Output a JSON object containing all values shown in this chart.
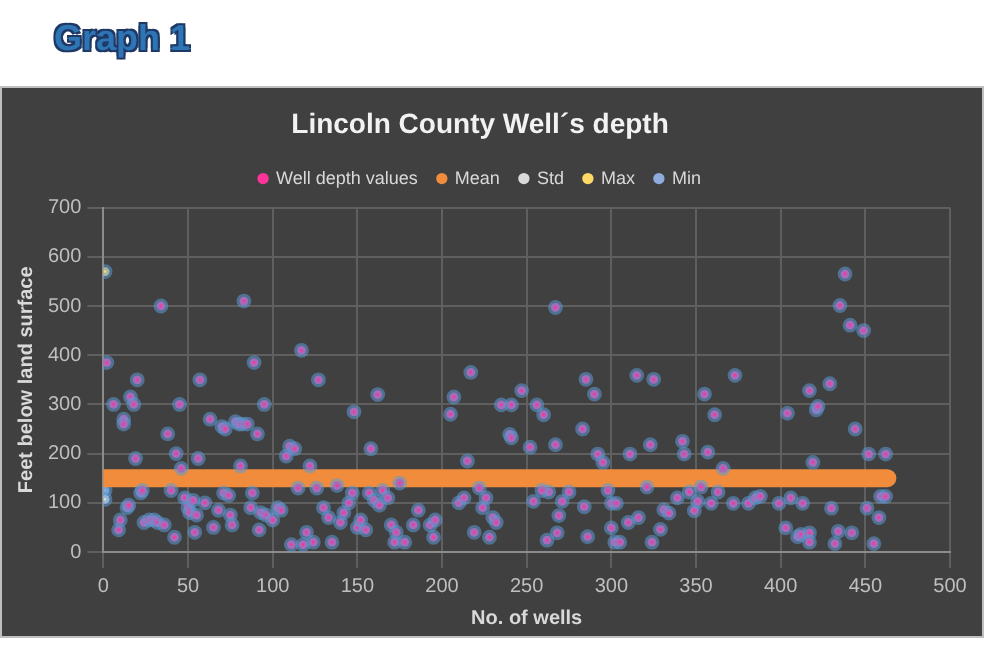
{
  "chart_data": {
    "type": "scatter",
    "title": "Lincoln County Well´s depth",
    "annotations": [
      "Graph 1"
    ],
    "xlabel": "No. of wells",
    "ylabel": "Feet below land surface",
    "xlim": [
      0,
      500
    ],
    "xticks": [
      0,
      50,
      100,
      150,
      200,
      250,
      300,
      350,
      400,
      450,
      500
    ],
    "ylim": [
      0,
      700
    ],
    "yticks": [
      0,
      100,
      200,
      300,
      400,
      500,
      600,
      700
    ],
    "grid": true,
    "legend": "top",
    "marker": "circle",
    "series": [
      {
        "name": "Well depth values",
        "color": "#ff3399",
        "x": [
          2,
          6,
          9,
          10,
          12,
          12,
          14,
          15,
          16,
          18,
          19,
          20,
          22,
          23,
          24,
          27,
          30,
          32,
          34,
          36,
          38,
          40,
          42,
          43,
          45,
          46,
          48,
          50,
          51,
          53,
          54,
          55,
          56,
          57,
          60,
          63,
          65,
          68,
          70,
          71,
          72,
          74,
          75,
          76,
          78,
          80,
          81,
          82,
          83,
          85,
          87,
          88,
          89,
          91,
          92,
          93,
          95,
          96,
          100,
          103,
          105,
          108,
          110,
          111,
          113,
          115,
          117,
          118,
          120,
          122,
          124,
          126,
          127,
          130,
          133,
          135,
          138,
          140,
          142,
          145,
          147,
          148,
          150,
          152,
          155,
          157,
          158,
          160,
          162,
          163,
          165,
          168,
          170,
          172,
          173,
          175,
          178,
          183,
          186,
          193,
          195,
          196,
          205,
          207,
          210,
          213,
          215,
          217,
          219,
          222,
          224,
          226,
          228,
          230,
          232,
          235,
          241,
          240,
          241,
          247,
          252,
          256,
          260,
          267,
          267,
          254,
          263,
          259,
          271,
          269,
          268,
          262,
          275,
          284,
          286,
          283,
          285,
          290,
          292,
          295,
          298,
          300,
          303,
          300,
          302,
          305,
          310,
          316,
          311,
          315,
          323,
          325,
          321,
          324,
          329,
          331,
          334,
          339,
          342,
          343,
          346,
          349,
          351,
          353,
          355,
          357,
          359,
          361,
          363,
          366,
          373,
          372,
          381,
          385,
          388,
          399,
          404,
          406,
          403,
          410,
          412,
          413,
          417,
          417,
          417,
          419,
          421,
          422,
          430,
          429,
          432,
          434,
          435,
          438,
          441,
          442,
          444,
          449,
          451,
          452,
          455,
          458,
          459,
          462,
          462
        ],
        "values": [
          385,
          300,
          45,
          65,
          270,
          260,
          90,
          95,
          315,
          300,
          190,
          350,
          120,
          125,
          60,
          65,
          65,
          60,
          500,
          55,
          240,
          125,
          30,
          200,
          300,
          170,
          110,
          90,
          80,
          105,
          40,
          75,
          190,
          350,
          100,
          270,
          50,
          85,
          255,
          120,
          250,
          115,
          75,
          55,
          265,
          260,
          175,
          260,
          510,
          260,
          90,
          120,
          385,
          240,
          45,
          80,
          300,
          75,
          65,
          90,
          85,
          195,
          215,
          15,
          210,
          130,
          410,
          15,
          40,
          175,
          20,
          130,
          350,
          90,
          70,
          20,
          135,
          60,
          80,
          100,
          120,
          285,
          50,
          65,
          45,
          120,
          210,
          105,
          320,
          95,
          125,
          110,
          55,
          20,
          40,
          140,
          20,
          55,
          85,
          55,
          30,
          65,
          280,
          315,
          100,
          110,
          185,
          365,
          40,
          130,
          90,
          110,
          30,
          70,
          60,
          299,
          299,
          239,
          232,
          328,
          213,
          299,
          279,
          218,
          497,
          103,
          122,
          125,
          103,
          74,
          39,
          24,
          122,
          92,
          31,
          250,
          351,
          321,
          199,
          182,
          125,
          99,
          99,
          49,
          20,
          20,
          60,
          70,
          199,
          359,
          218,
          351,
          132,
          20,
          46,
          86,
          79,
          110,
          225,
          199,
          122,
          84,
          103,
          132,
          321,
          203,
          99,
          279,
          122,
          170,
          359,
          99,
          99,
          110,
          113,
          99,
          282,
          110,
          49,
          31,
          36,
          99,
          328,
          39,
          20,
          182,
          289,
          296,
          89,
          342,
          17,
          42,
          501,
          565,
          461,
          39,
          250,
          450,
          89,
          199,
          17,
          70,
          113,
          199,
          113
        ]
      },
      {
        "name": "Mean",
        "type": "line",
        "marker": "none",
        "color": "#f08c3c",
        "x": [
          1,
          463
        ],
        "values": [
          150,
          150
        ]
      },
      {
        "name": "Std",
        "color": "#d9d9d9",
        "x": [
          1
        ],
        "values": [
          107
        ]
      },
      {
        "name": "Max",
        "color": "#ffd966",
        "x": [
          1
        ],
        "values": [
          570
        ]
      },
      {
        "name": "Min",
        "color": "#8faadc",
        "x": [
          1
        ],
        "values": [
          125
        ]
      }
    ]
  }
}
